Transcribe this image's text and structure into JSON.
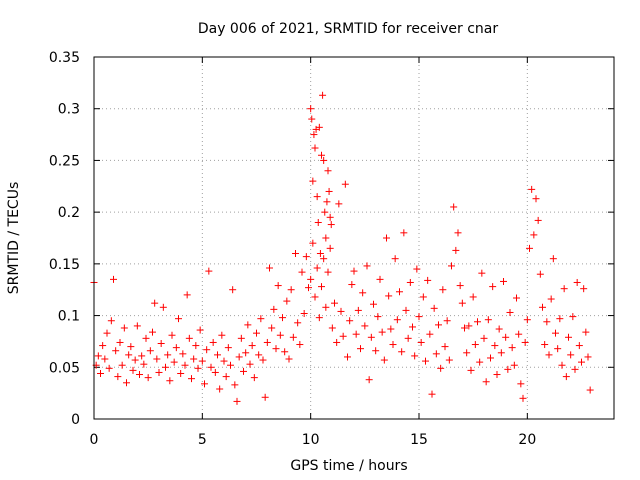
{
  "chart_data": {
    "type": "scatter",
    "title": "Day 006 of 2021, SRMTID for receiver cnar",
    "xlabel": "GPS time / hours",
    "ylabel": "SRMTID / TECUs",
    "xlim": [
      0,
      24
    ],
    "ylim": [
      0,
      0.35
    ],
    "x_ticks": [
      0,
      5,
      10,
      15,
      20
    ],
    "x_tick_labels": [
      "0",
      "5",
      "10",
      "15",
      "20"
    ],
    "y_ticks": [
      0,
      0.05,
      0.1,
      0.15,
      0.2,
      0.25,
      0.3,
      0.35
    ],
    "y_tick_labels": [
      "0",
      "0.05",
      "0.1",
      "0.15",
      "0.2",
      "0.25",
      "0.3",
      "0.35"
    ],
    "grid": true,
    "marker": "+",
    "color": "#ff0000",
    "series": [
      {
        "name": "SRMTID",
        "points": [
          [
            0.0,
            0.132
          ],
          [
            0.1,
            0.052
          ],
          [
            0.2,
            0.061
          ],
          [
            0.3,
            0.044
          ],
          [
            0.4,
            0.071
          ],
          [
            0.5,
            0.058
          ],
          [
            0.6,
            0.083
          ],
          [
            0.7,
            0.049
          ],
          [
            0.8,
            0.095
          ],
          [
            0.9,
            0.135
          ],
          [
            1.0,
            0.066
          ],
          [
            1.1,
            0.041
          ],
          [
            1.2,
            0.074
          ],
          [
            1.3,
            0.052
          ],
          [
            1.4,
            0.088
          ],
          [
            1.5,
            0.035
          ],
          [
            1.6,
            0.062
          ],
          [
            1.7,
            0.07
          ],
          [
            1.8,
            0.047
          ],
          [
            1.9,
            0.057
          ],
          [
            2.0,
            0.09
          ],
          [
            2.1,
            0.043
          ],
          [
            2.2,
            0.061
          ],
          [
            2.3,
            0.053
          ],
          [
            2.4,
            0.078
          ],
          [
            2.5,
            0.04
          ],
          [
            2.6,
            0.066
          ],
          [
            2.7,
            0.084
          ],
          [
            2.8,
            0.112
          ],
          [
            2.9,
            0.058
          ],
          [
            3.0,
            0.045
          ],
          [
            3.1,
            0.073
          ],
          [
            3.2,
            0.108
          ],
          [
            3.3,
            0.05
          ],
          [
            3.4,
            0.062
          ],
          [
            3.5,
            0.037
          ],
          [
            3.6,
            0.081
          ],
          [
            3.7,
            0.055
          ],
          [
            3.8,
            0.069
          ],
          [
            3.9,
            0.097
          ],
          [
            4.0,
            0.044
          ],
          [
            4.1,
            0.063
          ],
          [
            4.2,
            0.052
          ],
          [
            4.3,
            0.12
          ],
          [
            4.4,
            0.078
          ],
          [
            4.5,
            0.039
          ],
          [
            4.6,
            0.058
          ],
          [
            4.7,
            0.071
          ],
          [
            4.8,
            0.049
          ],
          [
            4.9,
            0.086
          ],
          [
            5.0,
            0.056
          ],
          [
            5.1,
            0.034
          ],
          [
            5.2,
            0.067
          ],
          [
            5.3,
            0.143
          ],
          [
            5.4,
            0.05
          ],
          [
            5.5,
            0.074
          ],
          [
            5.6,
            0.045
          ],
          [
            5.7,
            0.062
          ],
          [
            5.8,
            0.029
          ],
          [
            5.9,
            0.081
          ],
          [
            6.0,
            0.056
          ],
          [
            6.1,
            0.041
          ],
          [
            6.2,
            0.069
          ],
          [
            6.3,
            0.052
          ],
          [
            6.4,
            0.125
          ],
          [
            6.5,
            0.033
          ],
          [
            6.6,
            0.017
          ],
          [
            6.7,
            0.06
          ],
          [
            6.8,
            0.078
          ],
          [
            6.9,
            0.046
          ],
          [
            7.0,
            0.064
          ],
          [
            7.1,
            0.091
          ],
          [
            7.2,
            0.053
          ],
          [
            7.3,
            0.071
          ],
          [
            7.4,
            0.04
          ],
          [
            7.5,
            0.083
          ],
          [
            7.6,
            0.062
          ],
          [
            7.7,
            0.097
          ],
          [
            7.8,
            0.057
          ],
          [
            7.9,
            0.021
          ],
          [
            8.0,
            0.074
          ],
          [
            8.1,
            0.146
          ],
          [
            8.2,
            0.088
          ],
          [
            8.3,
            0.106
          ],
          [
            8.4,
            0.068
          ],
          [
            8.5,
            0.129
          ],
          [
            8.6,
            0.081
          ],
          [
            8.7,
            0.098
          ],
          [
            8.8,
            0.065
          ],
          [
            8.9,
            0.114
          ],
          [
            9.0,
            0.058
          ],
          [
            9.1,
            0.125
          ],
          [
            9.2,
            0.079
          ],
          [
            9.3,
            0.16
          ],
          [
            9.4,
            0.093
          ],
          [
            9.5,
            0.072
          ],
          [
            9.6,
            0.142
          ],
          [
            9.7,
            0.102
          ],
          [
            9.8,
            0.157
          ],
          [
            9.9,
            0.127
          ],
          [
            10.0,
            0.3
          ],
          [
            10.05,
            0.29
          ],
          [
            10.1,
            0.23
          ],
          [
            10.15,
            0.275
          ],
          [
            10.2,
            0.262
          ],
          [
            10.25,
            0.28
          ],
          [
            10.3,
            0.215
          ],
          [
            10.35,
            0.19
          ],
          [
            10.4,
            0.282
          ],
          [
            10.45,
            0.16
          ],
          [
            10.5,
            0.255
          ],
          [
            10.55,
            0.313
          ],
          [
            10.6,
            0.25
          ],
          [
            10.65,
            0.2
          ],
          [
            10.7,
            0.175
          ],
          [
            10.75,
            0.21
          ],
          [
            10.8,
            0.24
          ],
          [
            10.85,
            0.22
          ],
          [
            10.9,
            0.195
          ],
          [
            10.95,
            0.188
          ],
          [
            10.0,
            0.135
          ],
          [
            10.1,
            0.17
          ],
          [
            10.2,
            0.118
          ],
          [
            10.3,
            0.146
          ],
          [
            10.4,
            0.098
          ],
          [
            10.5,
            0.128
          ],
          [
            10.6,
            0.155
          ],
          [
            10.7,
            0.108
          ],
          [
            10.8,
            0.142
          ],
          [
            10.9,
            0.165
          ],
          [
            11.0,
            0.088
          ],
          [
            11.1,
            0.112
          ],
          [
            11.2,
            0.074
          ],
          [
            11.3,
            0.208
          ],
          [
            11.4,
            0.104
          ],
          [
            11.5,
            0.08
          ],
          [
            11.6,
            0.227
          ],
          [
            11.7,
            0.06
          ],
          [
            11.8,
            0.095
          ],
          [
            11.9,
            0.13
          ],
          [
            12.0,
            0.143
          ],
          [
            12.1,
            0.082
          ],
          [
            12.2,
            0.105
          ],
          [
            12.3,
            0.068
          ],
          [
            12.4,
            0.122
          ],
          [
            12.5,
            0.09
          ],
          [
            12.6,
            0.148
          ],
          [
            12.7,
            0.038
          ],
          [
            12.8,
            0.079
          ],
          [
            12.9,
            0.111
          ],
          [
            13.0,
            0.066
          ],
          [
            13.1,
            0.099
          ],
          [
            13.2,
            0.135
          ],
          [
            13.3,
            0.084
          ],
          [
            13.4,
            0.057
          ],
          [
            13.5,
            0.175
          ],
          [
            13.6,
            0.119
          ],
          [
            13.7,
            0.087
          ],
          [
            13.8,
            0.072
          ],
          [
            13.9,
            0.155
          ],
          [
            14.0,
            0.096
          ],
          [
            14.1,
            0.123
          ],
          [
            14.2,
            0.065
          ],
          [
            14.3,
            0.18
          ],
          [
            14.4,
            0.105
          ],
          [
            14.5,
            0.078
          ],
          [
            14.6,
            0.132
          ],
          [
            14.7,
            0.089
          ],
          [
            14.8,
            0.061
          ],
          [
            14.9,
            0.145
          ],
          [
            15.0,
            0.099
          ],
          [
            15.1,
            0.074
          ],
          [
            15.2,
            0.118
          ],
          [
            15.3,
            0.056
          ],
          [
            15.4,
            0.134
          ],
          [
            15.5,
            0.082
          ],
          [
            15.6,
            0.024
          ],
          [
            15.7,
            0.107
          ],
          [
            15.8,
            0.063
          ],
          [
            15.9,
            0.091
          ],
          [
            16.0,
            0.049
          ],
          [
            16.1,
            0.125
          ],
          [
            16.2,
            0.07
          ],
          [
            16.3,
            0.095
          ],
          [
            16.4,
            0.057
          ],
          [
            16.5,
            0.148
          ],
          [
            16.6,
            0.205
          ],
          [
            16.7,
            0.163
          ],
          [
            16.8,
            0.18
          ],
          [
            16.9,
            0.129
          ],
          [
            17.0,
            0.112
          ],
          [
            17.1,
            0.088
          ],
          [
            17.2,
            0.064
          ],
          [
            17.3,
            0.09
          ],
          [
            17.4,
            0.047
          ],
          [
            17.5,
            0.118
          ],
          [
            17.6,
            0.072
          ],
          [
            17.7,
            0.094
          ],
          [
            17.8,
            0.055
          ],
          [
            17.9,
            0.141
          ],
          [
            18.0,
            0.078
          ],
          [
            18.1,
            0.036
          ],
          [
            18.2,
            0.096
          ],
          [
            18.3,
            0.059
          ],
          [
            18.4,
            0.128
          ],
          [
            18.5,
            0.071
          ],
          [
            18.6,
            0.043
          ],
          [
            18.7,
            0.087
          ],
          [
            18.8,
            0.064
          ],
          [
            18.9,
            0.133
          ],
          [
            19.0,
            0.079
          ],
          [
            19.1,
            0.048
          ],
          [
            19.2,
            0.103
          ],
          [
            19.3,
            0.069
          ],
          [
            19.4,
            0.052
          ],
          [
            19.5,
            0.117
          ],
          [
            19.6,
            0.082
          ],
          [
            19.7,
            0.034
          ],
          [
            19.8,
            0.02
          ],
          [
            19.9,
            0.074
          ],
          [
            20.0,
            0.096
          ],
          [
            20.1,
            0.165
          ],
          [
            20.2,
            0.222
          ],
          [
            20.3,
            0.178
          ],
          [
            20.4,
            0.213
          ],
          [
            20.5,
            0.192
          ],
          [
            20.6,
            0.14
          ],
          [
            20.7,
            0.108
          ],
          [
            20.8,
            0.072
          ],
          [
            20.9,
            0.094
          ],
          [
            21.0,
            0.062
          ],
          [
            21.1,
            0.116
          ],
          [
            21.2,
            0.155
          ],
          [
            21.3,
            0.083
          ],
          [
            21.4,
            0.068
          ],
          [
            21.5,
            0.097
          ],
          [
            21.6,
            0.052
          ],
          [
            21.7,
            0.126
          ],
          [
            21.8,
            0.041
          ],
          [
            21.9,
            0.079
          ],
          [
            22.0,
            0.062
          ],
          [
            22.1,
            0.099
          ],
          [
            22.2,
            0.048
          ],
          [
            22.3,
            0.132
          ],
          [
            22.4,
            0.071
          ],
          [
            22.5,
            0.055
          ],
          [
            22.6,
            0.126
          ],
          [
            22.7,
            0.084
          ],
          [
            22.8,
            0.06
          ],
          [
            22.9,
            0.028
          ]
        ]
      }
    ]
  }
}
